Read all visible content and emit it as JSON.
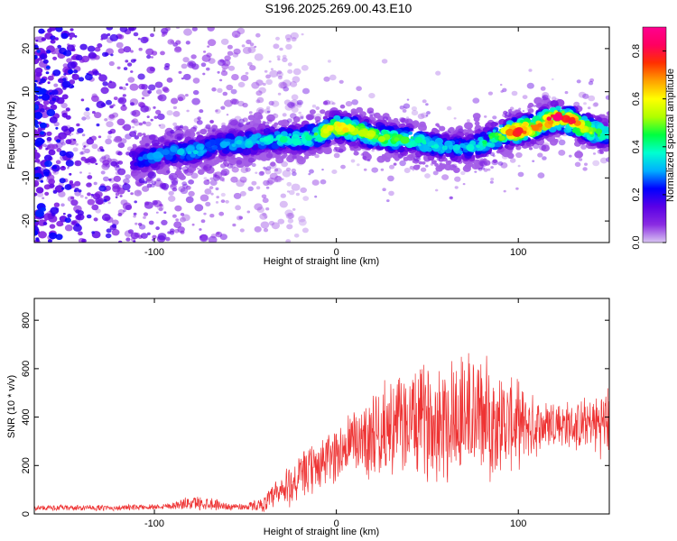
{
  "title": "S196.2025.269.00.43.E10",
  "chart_data": [
    {
      "type": "heatmap",
      "xlabel": "Height of straight line (km)",
      "ylabel": "Frequency (Hz)",
      "xlim": [
        -166,
        150
      ],
      "ylim": [
        -25,
        25
      ],
      "xticks": [
        -100,
        0,
        100
      ],
      "yticks": [
        -20,
        -10,
        0,
        10,
        20
      ],
      "grid": false,
      "colorbar": {
        "label": "Normalized spectral amplitude",
        "range": [
          0.0,
          0.9
        ],
        "ticks": [
          "0.0",
          "0.2",
          "0.4",
          "0.6",
          "0.8"
        ],
        "colors": [
          "#d9c6f2",
          "#8a2be2",
          "#5a00e6",
          "#0000ff",
          "#00b0ff",
          "#00ffd0",
          "#00ff40",
          "#b0ff00",
          "#ffff00",
          "#ffa000",
          "#ff3000",
          "#ff0060",
          "#ff0090"
        ]
      },
      "ridge": {
        "x": [
          -110,
          -100,
          -90,
          -80,
          -70,
          -60,
          -50,
          -40,
          -30,
          -20,
          -10,
          0,
          10,
          20,
          30,
          40,
          50,
          60,
          70,
          80,
          90,
          100,
          110,
          120,
          130,
          140,
          150
        ],
        "frequency": [
          -6,
          -5,
          -4,
          -4,
          -3,
          -2,
          -2,
          -1,
          -1,
          -1,
          0,
          2,
          1,
          0,
          -1,
          -1,
          -2,
          -3,
          -3,
          -2,
          0,
          1,
          2,
          4,
          3,
          1,
          0
        ],
        "amplitude": [
          0.25,
          0.3,
          0.3,
          0.35,
          0.3,
          0.3,
          0.35,
          0.35,
          0.4,
          0.4,
          0.5,
          0.65,
          0.6,
          0.55,
          0.5,
          0.45,
          0.4,
          0.35,
          0.35,
          0.4,
          0.55,
          0.8,
          0.7,
          0.85,
          0.8,
          0.55,
          0.4
        ]
      }
    },
    {
      "type": "line",
      "xlabel": "Height of straight line (km)",
      "ylabel": "SNR (10 * v/v)",
      "xlim": [
        -166,
        150
      ],
      "ylim": [
        0,
        890
      ],
      "xticks": [
        -100,
        0,
        100
      ],
      "yticks": [
        0,
        200,
        400,
        600,
        800
      ],
      "grid": false,
      "color": "#ee3333",
      "envelope": {
        "x": [
          -166,
          -140,
          -120,
          -100,
          -90,
          -80,
          -70,
          -60,
          -50,
          -40,
          -30,
          -20,
          -10,
          0,
          10,
          20,
          30,
          40,
          50,
          60,
          70,
          80,
          90,
          100,
          110,
          120,
          130,
          140,
          150
        ],
        "mean": [
          25,
          25,
          25,
          30,
          35,
          45,
          45,
          30,
          30,
          40,
          90,
          150,
          200,
          250,
          300,
          330,
          360,
          380,
          390,
          400,
          410,
          400,
          380,
          370,
          360,
          380,
          360,
          370,
          380
        ],
        "spread": [
          12,
          12,
          12,
          12,
          15,
          30,
          30,
          15,
          15,
          30,
          90,
          100,
          110,
          120,
          150,
          180,
          200,
          220,
          240,
          280,
          300,
          260,
          220,
          180,
          120,
          110,
          100,
          120,
          160
        ]
      }
    }
  ]
}
